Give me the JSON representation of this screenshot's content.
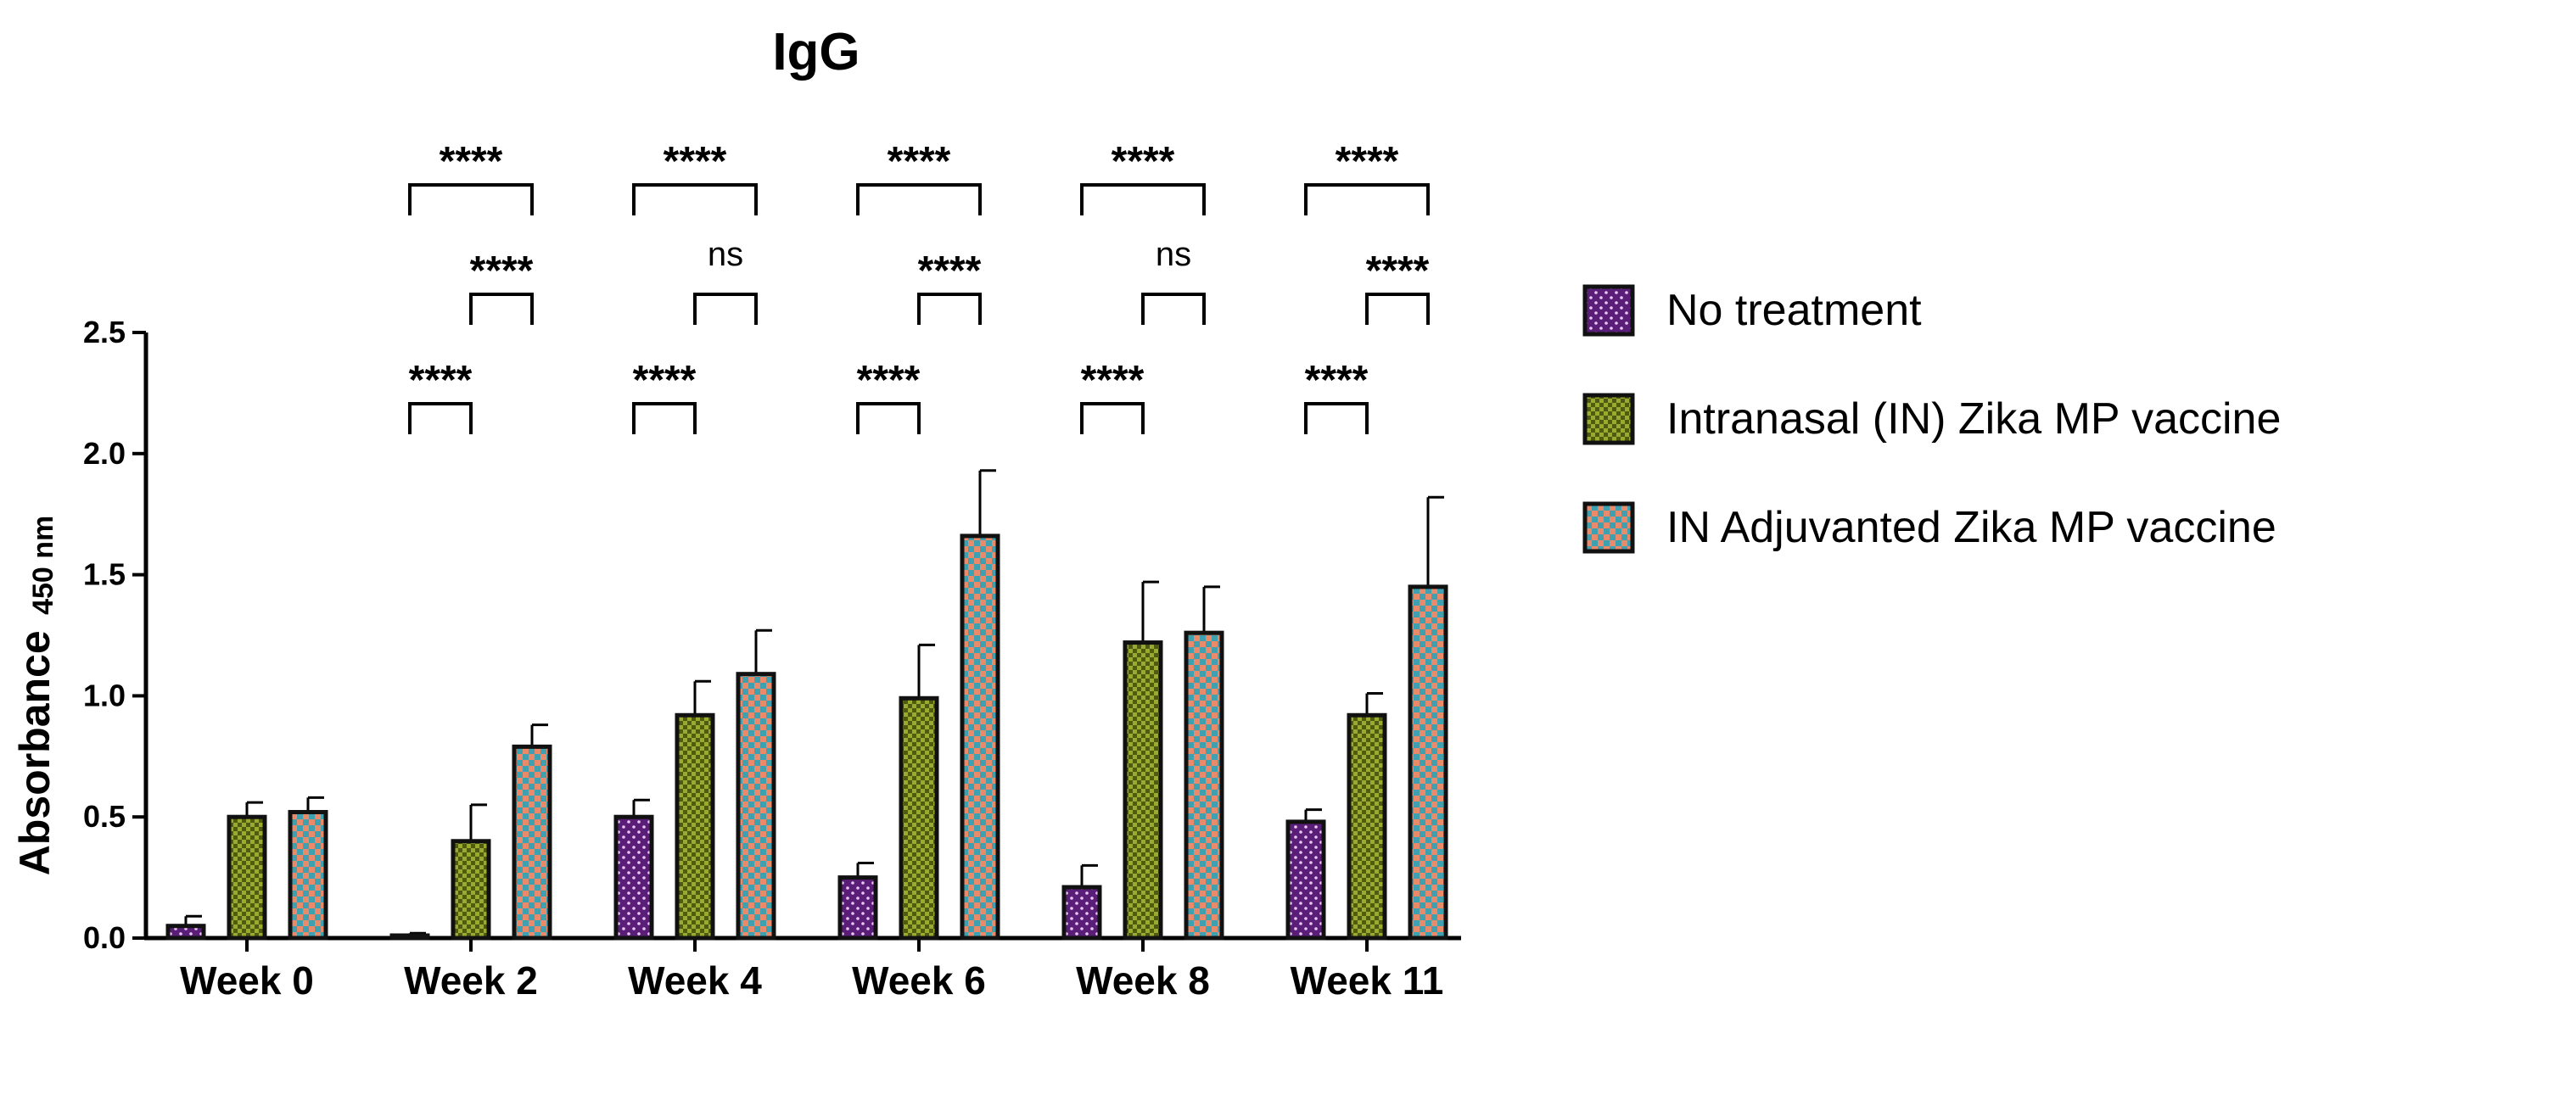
{
  "chart_data": {
    "type": "bar",
    "title": "IgG",
    "ylabel": "Absorbance",
    "ylabel_subscript": "450 nm",
    "xlabel": "",
    "ylim": [
      0,
      2.5
    ],
    "yticks": [
      "0.0",
      "0.5",
      "1.0",
      "1.5",
      "2.0",
      "2.5"
    ],
    "ytick_values": [
      0,
      0.5,
      1.0,
      1.5,
      2.0,
      2.5
    ],
    "categories": [
      "Week 0",
      "Week 2",
      "Week 4",
      "Week 6",
      "Week 8",
      "Week 11"
    ],
    "series": [
      {
        "name": "No treatment",
        "color": "#5b1e78",
        "values": [
          0.05,
          0.01,
          0.5,
          0.25,
          0.21,
          0.48
        ],
        "errors": [
          0.04,
          0.01,
          0.07,
          0.06,
          0.09,
          0.05
        ]
      },
      {
        "name": "Intranasal (IN) Zika MP vaccine",
        "color": "#8a9a26",
        "values": [
          0.5,
          0.4,
          0.92,
          0.99,
          1.22,
          0.92
        ],
        "errors": [
          0.06,
          0.15,
          0.14,
          0.22,
          0.25,
          0.09
        ]
      },
      {
        "name": "IN Adjuvanted Zika MP vaccine",
        "color": "#3f8fa0",
        "values": [
          0.52,
          0.79,
          1.09,
          1.66,
          1.26,
          1.45
        ],
        "errors": [
          0.06,
          0.09,
          0.18,
          0.27,
          0.19,
          0.37
        ]
      }
    ],
    "significance": [
      {
        "week": "Week 2",
        "from": 1,
        "to": 3,
        "label": "****"
      },
      {
        "week": "Week 2",
        "from": 2,
        "to": 3,
        "label": "****"
      },
      {
        "week": "Week 2",
        "from": 1,
        "to": 2,
        "label": "****"
      },
      {
        "week": "Week 4",
        "from": 1,
        "to": 3,
        "label": "****"
      },
      {
        "week": "Week 4",
        "from": 2,
        "to": 3,
        "label": "ns"
      },
      {
        "week": "Week 4",
        "from": 1,
        "to": 2,
        "label": "****"
      },
      {
        "week": "Week 6",
        "from": 1,
        "to": 3,
        "label": "****"
      },
      {
        "week": "Week 6",
        "from": 1,
        "to": 2,
        "label": "****"
      },
      {
        "week": "Week 6",
        "from": 2,
        "to": 3,
        "label": "****"
      },
      {
        "week": "Week 8",
        "from": 1,
        "to": 3,
        "label": "****"
      },
      {
        "week": "Week 8",
        "from": 2,
        "to": 3,
        "label": "ns"
      },
      {
        "week": "Week 8",
        "from": 1,
        "to": 2,
        "label": "****"
      },
      {
        "week": "Week 11",
        "from": 1,
        "to": 3,
        "label": "****"
      },
      {
        "week": "Week 11",
        "from": 2,
        "to": 3,
        "label": "****"
      },
      {
        "week": "Week 11",
        "from": 1,
        "to": 2,
        "label": "****"
      }
    ],
    "legend_position": "right",
    "grid": false
  }
}
